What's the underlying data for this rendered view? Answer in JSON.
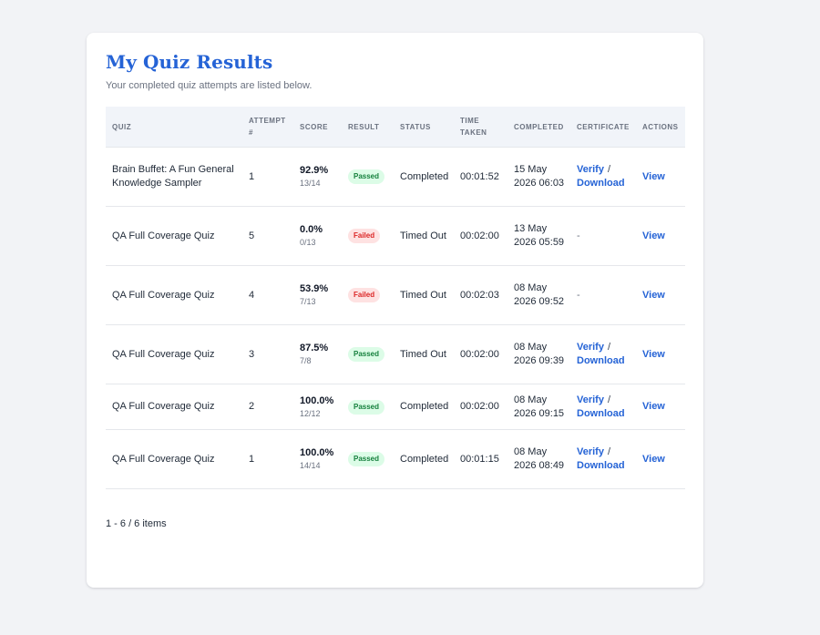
{
  "page": {
    "title": "My Quiz Results",
    "subtitle": "Your completed quiz attempts are listed below."
  },
  "colors": {
    "accent": "#2563d6",
    "passed_bg": "#dcfce7",
    "passed_text": "#15803d",
    "failed_bg": "#fee2e2",
    "failed_text": "#dc2626",
    "page_bg": "#f2f3f6"
  },
  "table": {
    "headers": {
      "quiz": "QUIZ",
      "attempt_1": "ATTEMPT",
      "attempt_2": "#",
      "score": "SCORE",
      "result": "RESULT",
      "status": "STATUS",
      "time_1": "TIME",
      "time_2": "TAKEN",
      "completed": "COMPLETED",
      "certificate": "CERTIFICATE",
      "actions": "ACTIONS"
    },
    "rows": [
      {
        "quiz": "Brain Buffet: A Fun General Knowledge Sampler",
        "attempt": "1",
        "score_pct": "92.9%",
        "score_frac": "13/14",
        "result": "Passed",
        "status": "Completed",
        "time_taken": "00:01:52",
        "completed": "15 May 2026 06:03",
        "verify": "Verify",
        "slash": "/",
        "download": "Download",
        "action": "View"
      },
      {
        "quiz": "QA Full Coverage Quiz",
        "attempt": "5",
        "score_pct": "0.0%",
        "score_frac": "0/13",
        "result": "Failed",
        "status": "Timed Out",
        "time_taken": "00:02:00",
        "completed": "13 May 2026 05:59",
        "certificate": "-",
        "action": "View"
      },
      {
        "quiz": "QA Full Coverage Quiz",
        "attempt": "4",
        "score_pct": "53.9%",
        "score_frac": "7/13",
        "result": "Failed",
        "status": "Timed Out",
        "time_taken": "00:02:03",
        "completed": "08 May 2026 09:52",
        "certificate": "-",
        "action": "View"
      },
      {
        "quiz": "QA Full Coverage Quiz",
        "attempt": "3",
        "score_pct": "87.5%",
        "score_frac": "7/8",
        "result": "Passed",
        "status": "Timed Out",
        "time_taken": "00:02:00",
        "completed": "08 May 2026 09:39",
        "verify": "Verify",
        "slash": "/",
        "download": "Download",
        "action": "View"
      },
      {
        "quiz": "QA Full Coverage Quiz",
        "attempt": "2",
        "score_pct": "100.0%",
        "score_frac": "12/12",
        "result": "Passed",
        "status": "Completed",
        "time_taken": "00:02:00",
        "completed": "08 May 2026 09:15",
        "verify": "Verify",
        "slash": "/",
        "download": "Download",
        "action": "View"
      },
      {
        "quiz": "QA Full Coverage Quiz",
        "attempt": "1",
        "score_pct": "100.0%",
        "score_frac": "14/14",
        "result": "Passed",
        "status": "Completed",
        "time_taken": "00:01:15",
        "completed": "08 May 2026 08:49",
        "verify": "Verify",
        "slash": "/",
        "download": "Download",
        "action": "View"
      }
    ]
  },
  "pagination": {
    "summary": "1 - 6 / 6 items"
  }
}
